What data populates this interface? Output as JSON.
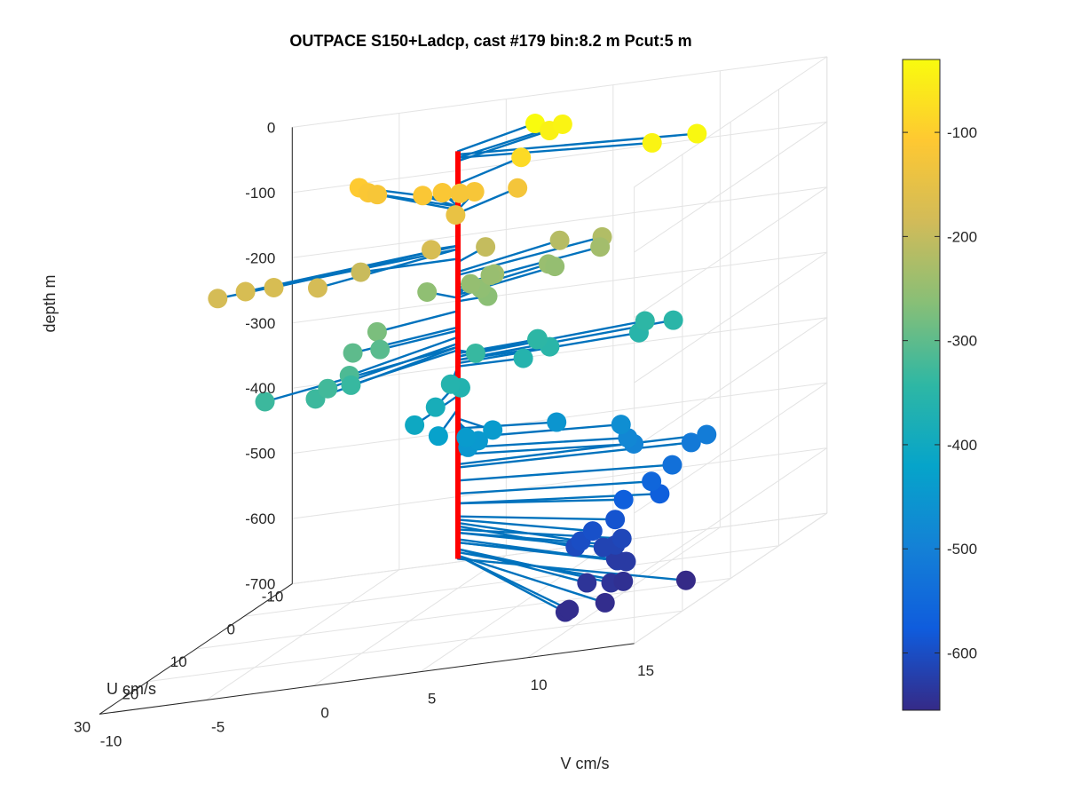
{
  "chart_data": {
    "type": "scatter",
    "title": "OUTPACE S150+Ladcp, cast #179 bin:8.2 m  Pcut:5 m",
    "xlabel": "V cm/s",
    "ylabel": "U cm/s",
    "zlabel": "depth m",
    "grid": true,
    "view": "3d",
    "xlim": [
      -10,
      15
    ],
    "ylim": [
      -10,
      30
    ],
    "zlim": [
      -700,
      0
    ],
    "xticks": [
      "-10",
      "-5",
      "0",
      "5",
      "10",
      "15"
    ],
    "yticks": [
      "-10",
      "0",
      "10",
      "20",
      "30"
    ],
    "zticks": [
      "0",
      "-100",
      "-200",
      "-300",
      "-400",
      "-500",
      "-600",
      "-700"
    ],
    "colorbar": {
      "ticks": [
        "-100",
        "-200",
        "-300",
        "-400",
        "-500",
        "-600"
      ],
      "range": [
        -655,
        -30
      ],
      "colormap": [
        "#352a87",
        "#0f5cdd",
        "#1481d6",
        "#06a4ca",
        "#2eb7a4",
        "#87bf77",
        "#d1bb59",
        "#fec832",
        "#f9fb0e"
      ]
    },
    "line_color": "#0072bd",
    "profile_color": "#ff0000",
    "series": [
      {
        "values": [
          {
            "v": 2.1,
            "u": -6.7,
            "depth": -30
          },
          {
            "v": 12.1,
            "u": 4.1,
            "depth": -35
          },
          {
            "v": 3.2,
            "u": -7.5,
            "depth": -40
          },
          {
            "v": 10.0,
            "u": 4.1,
            "depth": -40
          },
          {
            "v": 2.7,
            "u": -7.0,
            "depth": -45
          },
          {
            "v": -6.8,
            "u": -9.7,
            "depth": -105
          },
          {
            "v": -6.4,
            "u": -9.8,
            "depth": -115
          },
          {
            "v": -6.0,
            "u": -9.9,
            "depth": -120
          },
          {
            "v": -2.1,
            "u": -6.1,
            "depth": -115
          },
          {
            "v": -3.0,
            "u": -6.0,
            "depth": -115
          },
          {
            "v": -1.3,
            "u": -6.2,
            "depth": -120
          },
          {
            "v": -0.6,
            "u": -6.1,
            "depth": -120
          },
          {
            "v": 1.3,
            "u": -6.6,
            "depth": -125
          },
          {
            "v": 1.4,
            "u": -6.9,
            "depth": -80
          },
          {
            "v": -1.1,
            "u": -4.4,
            "depth": -145
          },
          {
            "v": -1.2,
            "u": 0.2,
            "depth": -175
          },
          {
            "v": -4.5,
            "u": 0.2,
            "depth": -195
          },
          {
            "v": -4.8,
            "u": 7.8,
            "depth": -180
          },
          {
            "v": -7.1,
            "u": 6.7,
            "depth": -175
          },
          {
            "v": -8.4,
            "u": 6.8,
            "depth": -175
          },
          {
            "v": -9.7,
            "u": 6.8,
            "depth": -180
          },
          {
            "v": 0.3,
            "u": -4.4,
            "depth": -200
          },
          {
            "v": 3.2,
            "u": -6.9,
            "depth": -215
          },
          {
            "v": 5.1,
            "u": -7.3,
            "depth": -220
          },
          {
            "v": 5.0,
            "u": -7.3,
            "depth": -235
          },
          {
            "v": 2.9,
            "u": -5.9,
            "depth": -245
          },
          {
            "v": 3.2,
            "u": -5.9,
            "depth": -250
          },
          {
            "v": 0.5,
            "u": -4.5,
            "depth": -245
          },
          {
            "v": 0.9,
            "u": -3.6,
            "depth": -240
          },
          {
            "v": -0.2,
            "u": -3.5,
            "depth": -250
          },
          {
            "v": 0.5,
            "u": -2.5,
            "depth": -255
          },
          {
            "v": 1.3,
            "u": -0.4,
            "depth": -260
          },
          {
            "v": -2.3,
            "u": -3.8,
            "depth": -255
          },
          {
            "v": -2.9,
            "u": 3.9,
            "depth": -275
          },
          {
            "v": -3.9,
            "u": 4.5,
            "depth": -300
          },
          {
            "v": -2.9,
            "u": 3.3,
            "depth": -305
          },
          {
            "v": -3.7,
            "u": 10.6,
            "depth": -325
          },
          {
            "v": -6.5,
            "u": 11.2,
            "depth": -330
          },
          {
            "v": -3.0,
            "u": 9.2,
            "depth": -315
          },
          {
            "v": -3.8,
            "u": 12.7,
            "depth": -330
          },
          {
            "v": -3.2,
            "u": 8.0,
            "depth": -335
          },
          {
            "v": 1.3,
            "u": 2.1,
            "depth": -335
          },
          {
            "v": 3.4,
            "u": -1.3,
            "depth": -340
          },
          {
            "v": 3.1,
            "u": -2.8,
            "depth": -345
          },
          {
            "v": 7.8,
            "u": -4.2,
            "depth": -345
          },
          {
            "v": 9.1,
            "u": -4.3,
            "depth": -350
          },
          {
            "v": 4.2,
            "u": -0.4,
            "depth": -350
          },
          {
            "v": 7.9,
            "u": -2.5,
            "depth": -355
          },
          {
            "v": 3.1,
            "u": 0.2,
            "depth": -360
          },
          {
            "v": 1.1,
            "u": 6.4,
            "depth": -360
          },
          {
            "v": 1.7,
            "u": 7.0,
            "depth": -365
          },
          {
            "v": 0.8,
            "u": 8.2,
            "depth": -385
          },
          {
            "v": 0.0,
            "u": 9.0,
            "depth": -405
          },
          {
            "v": 1.2,
            "u": 9.4,
            "depth": -425
          },
          {
            "v": 3.0,
            "u": 6.1,
            "depth": -440
          },
          {
            "v": 5.2,
            "u": 2.6,
            "depth": -455
          },
          {
            "v": 8.3,
            "u": 3.0,
            "depth": -470
          },
          {
            "v": 9.0,
            "u": 4.7,
            "depth": -485
          },
          {
            "v": 9.3,
            "u": 4.8,
            "depth": -495
          },
          {
            "v": 11.9,
            "u": 1.2,
            "depth": -510
          },
          {
            "v": 11.4,
            "u": 2.2,
            "depth": -515
          },
          {
            "v": 2.8,
            "u": 8.2,
            "depth": -445
          },
          {
            "v": 2.5,
            "u": 9.0,
            "depth": -450
          },
          {
            "v": 2.1,
            "u": 7.6,
            "depth": -440
          },
          {
            "v": 11.1,
            "u": 4.8,
            "depth": -535
          },
          {
            "v": 10.2,
            "u": 5.1,
            "depth": -555
          },
          {
            "v": 10.9,
            "u": 6.5,
            "depth": -570
          },
          {
            "v": 9.3,
            "u": 6.9,
            "depth": -570
          },
          {
            "v": 9.4,
            "u": 9.1,
            "depth": -590
          },
          {
            "v": 8.8,
            "u": 11.1,
            "depth": -595
          },
          {
            "v": 8.7,
            "u": 13.1,
            "depth": -600
          },
          {
            "v": 8.6,
            "u": 13.8,
            "depth": -605
          },
          {
            "v": 10.3,
            "u": 11.7,
            "depth": -610
          },
          {
            "v": 9.7,
            "u": 12.9,
            "depth": -615
          },
          {
            "v": 10.2,
            "u": 12.6,
            "depth": -615
          },
          {
            "v": 10.6,
            "u": 14.3,
            "depth": -630
          },
          {
            "v": 11.1,
            "u": 16.2,
            "depth": -625
          },
          {
            "v": 11.4,
            "u": 15.7,
            "depth": -630
          },
          {
            "v": 10.4,
            "u": 19.4,
            "depth": -640
          },
          {
            "v": 11.8,
            "u": 20.6,
            "depth": -640
          },
          {
            "v": 12.1,
            "u": 19.4,
            "depth": -645
          },
          {
            "v": 15.1,
            "u": 19.7,
            "depth": -655
          },
          {
            "v": 11.1,
            "u": 27.0,
            "depth": -650
          },
          {
            "v": 12.6,
            "u": 25.4,
            "depth": -650
          },
          {
            "v": 11.1,
            "u": 26.2,
            "depth": -650
          }
        ]
      }
    ]
  }
}
